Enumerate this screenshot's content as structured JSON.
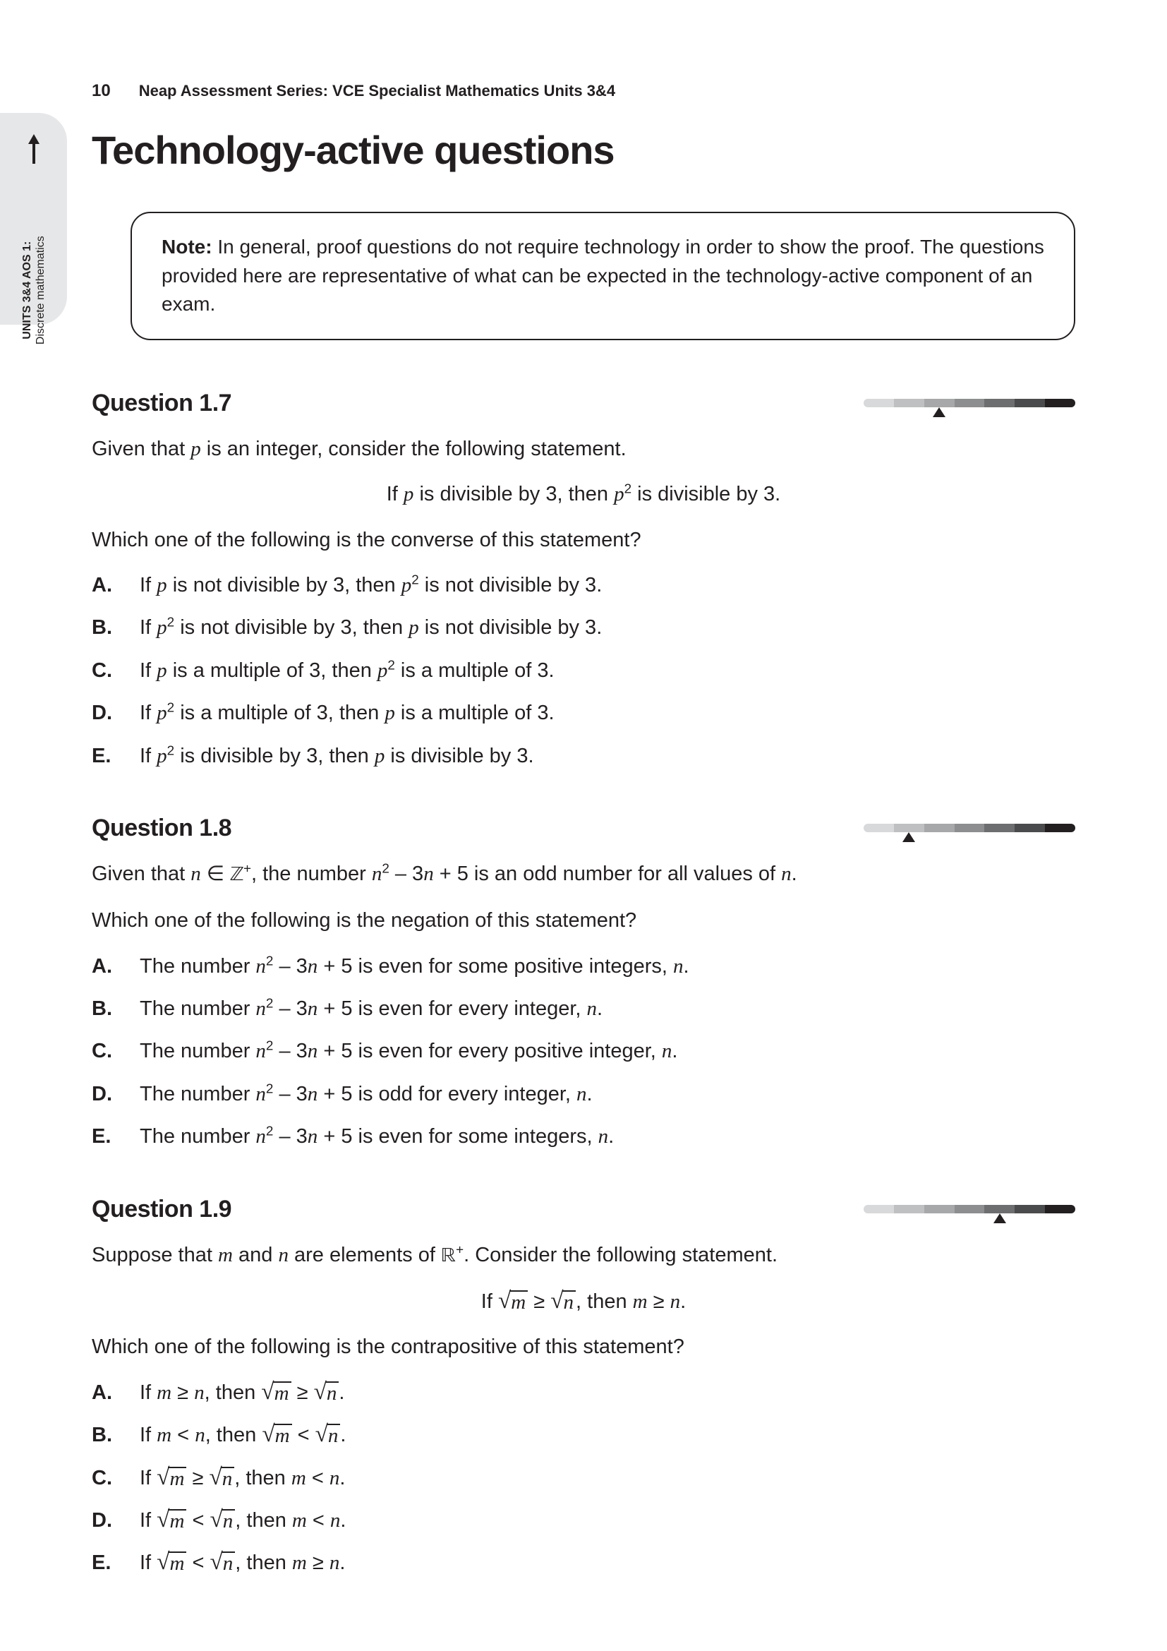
{
  "page_number": "10",
  "book_title": "Neap Assessment Series: VCE Specialist Mathematics Units 3&4",
  "side_tab": {
    "line1": "UNITS 3&4 AOS 1:",
    "line2": "Discrete mathematics"
  },
  "section_title": "Technology-active questions",
  "note": {
    "label": "Note:",
    "text": "In general, proof questions do not require technology in order to show the proof. The questions provided here are representative of what can be expected in the technology-active component of an exam."
  },
  "difficulty_colors": [
    "#d8d9da",
    "#bfc0c2",
    "#a6a8aa",
    "#8c8e90",
    "#6c6e70",
    "#4a4b4d",
    "#231f20"
  ],
  "questions": [
    {
      "number": "Question 1.7",
      "difficulty_index": 2,
      "intro_html": "Given that <span class='mi'>p</span> is an integer, consider the following statement.",
      "statement_html": "If <span class='mi'>p</span> is divisible by 3, then <span class='mi'>p</span><sup>2</sup> is divisible by 3.",
      "prompt": "Which one of the following is the converse of this statement?",
      "options": [
        "If <span class='mi'>p</span> is not divisible by 3, then <span class='mi'>p</span><sup>2</sup> is not divisible by 3.",
        "If <span class='mi'>p</span><sup>2</sup> is not divisible by 3, then <span class='mi'>p</span> is not divisible by 3.",
        "If <span class='mi'>p</span> is a multiple of 3, then <span class='mi'>p</span><sup>2</sup> is a multiple of 3.",
        "If <span class='mi'>p</span><sup>2</sup> is a multiple of 3, then <span class='mi'>p</span> is a multiple of 3.",
        "If <span class='mi'>p</span><sup>2</sup> is divisible by 3, then <span class='mi'>p</span> is divisible by 3."
      ]
    },
    {
      "number": "Question 1.8",
      "difficulty_index": 1,
      "intro_html": "Given that <span class='mi'>n</span> ∈ <span class='bb'>ℤ</span><sup>+</sup>, the number <span class='mi'>n</span><sup>2</sup> – 3<span class='mi'>n</span> + 5 is an odd number for all values of <span class='mi'>n</span>.",
      "statement_html": "",
      "prompt": "Which one of the following is the negation of this statement?",
      "options": [
        "The number <span class='mi'>n</span><sup>2</sup> – 3<span class='mi'>n</span> + 5 is even for some positive integers, <span class='mi'>n</span>.",
        "The number <span class='mi'>n</span><sup>2</sup> – 3<span class='mi'>n</span> + 5 is even for every integer, <span class='mi'>n</span>.",
        "The number <span class='mi'>n</span><sup>2</sup> – 3<span class='mi'>n</span> + 5 is even for every positive integer, <span class='mi'>n</span>.",
        "The number <span class='mi'>n</span><sup>2</sup> – 3<span class='mi'>n</span> + 5 is odd for every integer, <span class='mi'>n</span>.",
        "The number <span class='mi'>n</span><sup>2</sup> – 3<span class='mi'>n</span> + 5 is even for some integers, <span class='mi'>n</span>."
      ]
    },
    {
      "number": "Question 1.9",
      "difficulty_index": 4,
      "intro_html": "Suppose that <span class='mi'>m</span> and <span class='mi'>n</span> are elements of <span class='bb'>ℝ</span><sup>+</sup>. Consider the following statement.",
      "statement_html": "If <span class='sqrt'><span class='rad'>√</span><span class='arg'>m</span></span> ≥ <span class='sqrt'><span class='rad'>√</span><span class='arg'>n</span></span>, then <span class='mi'>m</span> ≥ <span class='mi'>n</span>.",
      "prompt": "Which one of the following is the contrapositive of this statement?",
      "options": [
        "If <span class='mi'>m</span> ≥ <span class='mi'>n</span>, then <span class='sqrt'><span class='rad'>√</span><span class='arg'>m</span></span> ≥ <span class='sqrt'><span class='rad'>√</span><span class='arg'>n</span></span>.",
        "If <span class='mi'>m</span> &lt; <span class='mi'>n</span>, then <span class='sqrt'><span class='rad'>√</span><span class='arg'>m</span></span> &lt; <span class='sqrt'><span class='rad'>√</span><span class='arg'>n</span></span>.",
        "If <span class='sqrt'><span class='rad'>√</span><span class='arg'>m</span></span> ≥ <span class='sqrt'><span class='rad'>√</span><span class='arg'>n</span></span>, then <span class='mi'>m</span> &lt; <span class='mi'>n</span>.",
        "If <span class='sqrt'><span class='rad'>√</span><span class='arg'>m</span></span> &lt; <span class='sqrt'><span class='rad'>√</span><span class='arg'>n</span></span>, then <span class='mi'>m</span> &lt; <span class='mi'>n</span>.",
        "If <span class='sqrt'><span class='rad'>√</span><span class='arg'>m</span></span> &lt; <span class='sqrt'><span class='rad'>√</span><span class='arg'>n</span></span>, then <span class='mi'>m</span> ≥ <span class='mi'>n</span>."
      ]
    }
  ],
  "option_letters": [
    "A.",
    "B.",
    "C.",
    "D.",
    "E."
  ]
}
